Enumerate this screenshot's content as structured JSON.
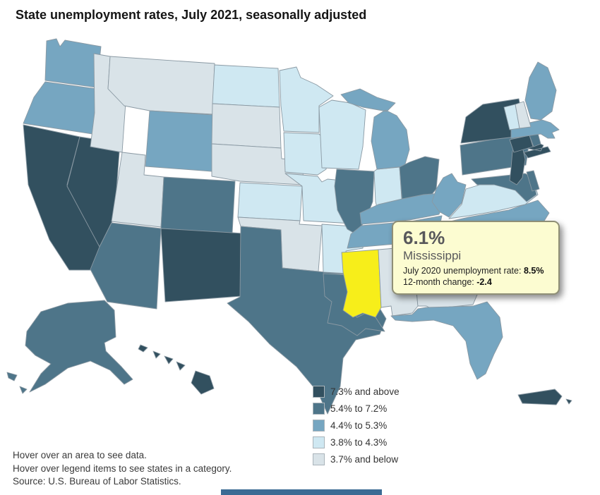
{
  "title": "State unemployment rates, July 2021, seasonally adjusted",
  "tooltip": {
    "rate": "6.1%",
    "state": "Mississippi",
    "line1_label": "July 2020 unemployment rate: ",
    "line1_value": "8.5%",
    "line2_label": "12-month change: ",
    "line2_value": "-2.4"
  },
  "legend": {
    "items": [
      {
        "label": "7.3% and above",
        "color": "#32505f",
        "category": "c5"
      },
      {
        "label": "5.4% to 7.2%",
        "color": "#4e7589",
        "category": "c4"
      },
      {
        "label": "4.4% to 5.3%",
        "color": "#76a6c1",
        "category": "c3"
      },
      {
        "label": "3.8% to 4.3%",
        "color": "#cfe8f2",
        "category": "c2"
      },
      {
        "label": "3.7% and below",
        "color": "#d9e3e8",
        "category": "c1"
      }
    ]
  },
  "footer": {
    "lines": [
      "Hover over an area to see data.",
      "Hover over legend items to see states in a category.",
      "Source: U.S. Bureau of Labor Statistics."
    ]
  },
  "map": {
    "border_color": "#8a99a3",
    "colors": {
      "c1": "#d9e3e8",
      "c2": "#cfe8f2",
      "c3": "#76a6c1",
      "c4": "#4e7589",
      "c5": "#32505f",
      "highlight": "#f7ee1a"
    },
    "highlighted_state": "Mississippi",
    "states": [
      {
        "id": "WA",
        "name": "Washington",
        "category": "c3"
      },
      {
        "id": "OR",
        "name": "Oregon",
        "category": "c3"
      },
      {
        "id": "CA",
        "name": "California",
        "category": "c5"
      },
      {
        "id": "NV",
        "name": "Nevada",
        "category": "c5"
      },
      {
        "id": "ID",
        "name": "Idaho",
        "category": "c1"
      },
      {
        "id": "MT",
        "name": "Montana",
        "category": "c1"
      },
      {
        "id": "WY",
        "name": "Wyoming",
        "category": "c3"
      },
      {
        "id": "UT",
        "name": "Utah",
        "category": "c1"
      },
      {
        "id": "CO",
        "name": "Colorado",
        "category": "c4"
      },
      {
        "id": "AZ",
        "name": "Arizona",
        "category": "c4"
      },
      {
        "id": "NM",
        "name": "New Mexico",
        "category": "c5"
      },
      {
        "id": "ND",
        "name": "North Dakota",
        "category": "c2"
      },
      {
        "id": "SD",
        "name": "South Dakota",
        "category": "c1"
      },
      {
        "id": "NE",
        "name": "Nebraska",
        "category": "c1"
      },
      {
        "id": "KS",
        "name": "Kansas",
        "category": "c2"
      },
      {
        "id": "OK",
        "name": "Oklahoma",
        "category": "c1"
      },
      {
        "id": "TX",
        "name": "Texas",
        "category": "c4"
      },
      {
        "id": "MN",
        "name": "Minnesota",
        "category": "c2"
      },
      {
        "id": "IA",
        "name": "Iowa",
        "category": "c2"
      },
      {
        "id": "MO",
        "name": "Missouri",
        "category": "c2"
      },
      {
        "id": "AR",
        "name": "Arkansas",
        "category": "c2"
      },
      {
        "id": "LA",
        "name": "Louisiana",
        "category": "c4"
      },
      {
        "id": "WI",
        "name": "Wisconsin",
        "category": "c2"
      },
      {
        "id": "IL",
        "name": "Illinois",
        "category": "c4"
      },
      {
        "id": "IN",
        "name": "Indiana",
        "category": "c2"
      },
      {
        "id": "MI",
        "name": "Michigan",
        "category": "c3"
      },
      {
        "id": "OH",
        "name": "Ohio",
        "category": "c4"
      },
      {
        "id": "KY",
        "name": "Kentucky",
        "category": "c3"
      },
      {
        "id": "TN",
        "name": "Tennessee",
        "category": "c3"
      },
      {
        "id": "MS",
        "name": "Mississippi",
        "category": "highlight"
      },
      {
        "id": "AL",
        "name": "Alabama",
        "category": "c1"
      },
      {
        "id": "GA",
        "name": "Georgia",
        "category": "c1"
      },
      {
        "id": "FL",
        "name": "Florida",
        "category": "c3"
      },
      {
        "id": "SC",
        "name": "South Carolina",
        "category": "c2"
      },
      {
        "id": "NC",
        "name": "North Carolina",
        "category": "c3"
      },
      {
        "id": "VA",
        "name": "Virginia",
        "category": "c2"
      },
      {
        "id": "WV",
        "name": "West Virginia",
        "category": "c3"
      },
      {
        "id": "MD",
        "name": "Maryland",
        "category": "c4"
      },
      {
        "id": "DE",
        "name": "Delaware",
        "category": "c4"
      },
      {
        "id": "PA",
        "name": "Pennsylvania",
        "category": "c4"
      },
      {
        "id": "NJ",
        "name": "New Jersey",
        "category": "c5"
      },
      {
        "id": "NY",
        "name": "New York",
        "category": "c5"
      },
      {
        "id": "CT",
        "name": "Connecticut",
        "category": "c5"
      },
      {
        "id": "RI",
        "name": "Rhode Island",
        "category": "c4"
      },
      {
        "id": "MA",
        "name": "Massachusetts",
        "category": "c3"
      },
      {
        "id": "VT",
        "name": "Vermont",
        "category": "c2"
      },
      {
        "id": "NH",
        "name": "New Hampshire",
        "category": "c1"
      },
      {
        "id": "ME",
        "name": "Maine",
        "category": "c3"
      },
      {
        "id": "AK",
        "name": "Alaska",
        "category": "c4"
      },
      {
        "id": "HI",
        "name": "Hawaii",
        "category": "c5"
      },
      {
        "id": "PR",
        "name": "Puerto Rico",
        "category": "c5"
      }
    ]
  },
  "misc": {
    "bottom_bar_color": "#3b6b94"
  }
}
